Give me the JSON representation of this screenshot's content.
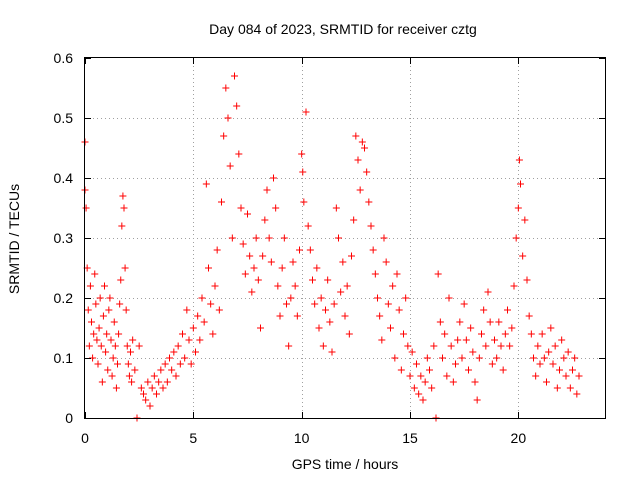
{
  "chart_data": {
    "type": "scatter",
    "title": "Day 084 of 2023, SRMTID for receiver cztg",
    "xlabel": "GPS time / hours",
    "ylabel": "SRMTID / TECUs",
    "xlim": [
      0,
      24
    ],
    "ylim": [
      0,
      0.6
    ],
    "xticks": [
      0,
      5,
      10,
      15,
      20
    ],
    "yticks": [
      0,
      0.1,
      0.2,
      0.3,
      0.4,
      0.5,
      0.6
    ],
    "xtick_labels": [
      "0",
      "5",
      "10",
      "15",
      "20"
    ],
    "ytick_labels": [
      "0",
      "0.1",
      "0.2",
      "0.3",
      "0.4",
      "0.5",
      "0.6"
    ],
    "grid": true,
    "marker": "+",
    "color": "#ff0000",
    "series": [
      {
        "name": "SRMTID",
        "points": [
          [
            0.0,
            0.46
          ],
          [
            0.0,
            0.38
          ],
          [
            0.05,
            0.35
          ],
          [
            0.1,
            0.25
          ],
          [
            0.15,
            0.18
          ],
          [
            0.2,
            0.12
          ],
          [
            0.25,
            0.22
          ],
          [
            0.3,
            0.16
          ],
          [
            0.35,
            0.1
          ],
          [
            0.4,
            0.14
          ],
          [
            0.45,
            0.24
          ],
          [
            0.5,
            0.19
          ],
          [
            0.55,
            0.13
          ],
          [
            0.6,
            0.09
          ],
          [
            0.65,
            0.15
          ],
          [
            0.7,
            0.2
          ],
          [
            0.75,
            0.12
          ],
          [
            0.8,
            0.06
          ],
          [
            0.85,
            0.17
          ],
          [
            0.9,
            0.22
          ],
          [
            0.95,
            0.11
          ],
          [
            1.0,
            0.14
          ],
          [
            1.05,
            0.08
          ],
          [
            1.1,
            0.18
          ],
          [
            1.15,
            0.2
          ],
          [
            1.2,
            0.13
          ],
          [
            1.25,
            0.07
          ],
          [
            1.3,
            0.1
          ],
          [
            1.35,
            0.16
          ],
          [
            1.4,
            0.12
          ],
          [
            1.45,
            0.05
          ],
          [
            1.5,
            0.09
          ],
          [
            1.55,
            0.14
          ],
          [
            1.6,
            0.19
          ],
          [
            1.65,
            0.23
          ],
          [
            1.7,
            0.32
          ],
          [
            1.75,
            0.37
          ],
          [
            1.8,
            0.35
          ],
          [
            1.85,
            0.25
          ],
          [
            1.9,
            0.18
          ],
          [
            1.95,
            0.12
          ],
          [
            2.0,
            0.09
          ],
          [
            2.05,
            0.07
          ],
          [
            2.1,
            0.11
          ],
          [
            2.15,
            0.06
          ],
          [
            2.2,
            0.13
          ],
          [
            2.3,
            0.08
          ],
          [
            2.4,
            0.0
          ],
          [
            2.5,
            0.12
          ],
          [
            2.6,
            0.05
          ],
          [
            2.7,
            0.04
          ],
          [
            2.8,
            0.03
          ],
          [
            2.9,
            0.06
          ],
          [
            3.0,
            0.02
          ],
          [
            3.1,
            0.05
          ],
          [
            3.2,
            0.07
          ],
          [
            3.3,
            0.04
          ],
          [
            3.4,
            0.06
          ],
          [
            3.5,
            0.08
          ],
          [
            3.6,
            0.05
          ],
          [
            3.7,
            0.09
          ],
          [
            3.8,
            0.06
          ],
          [
            3.9,
            0.1
          ],
          [
            4.0,
            0.08
          ],
          [
            4.1,
            0.11
          ],
          [
            4.2,
            0.07
          ],
          [
            4.3,
            0.12
          ],
          [
            4.4,
            0.09
          ],
          [
            4.5,
            0.14
          ],
          [
            4.6,
            0.1
          ],
          [
            4.7,
            0.18
          ],
          [
            4.8,
            0.13
          ],
          [
            4.9,
            0.09
          ],
          [
            5.0,
            0.15
          ],
          [
            5.1,
            0.11
          ],
          [
            5.2,
            0.17
          ],
          [
            5.3,
            0.13
          ],
          [
            5.4,
            0.2
          ],
          [
            5.5,
            0.16
          ],
          [
            5.6,
            0.39
          ],
          [
            5.7,
            0.25
          ],
          [
            5.8,
            0.19
          ],
          [
            5.9,
            0.14
          ],
          [
            6.0,
            0.22
          ],
          [
            6.1,
            0.28
          ],
          [
            6.2,
            0.18
          ],
          [
            6.3,
            0.36
          ],
          [
            6.4,
            0.47
          ],
          [
            6.5,
            0.55
          ],
          [
            6.6,
            0.5
          ],
          [
            6.7,
            0.42
          ],
          [
            6.8,
            0.3
          ],
          [
            6.9,
            0.57
          ],
          [
            7.0,
            0.52
          ],
          [
            7.1,
            0.44
          ],
          [
            7.2,
            0.35
          ],
          [
            7.3,
            0.29
          ],
          [
            7.4,
            0.24
          ],
          [
            7.5,
            0.34
          ],
          [
            7.6,
            0.27
          ],
          [
            7.7,
            0.21
          ],
          [
            7.8,
            0.25
          ],
          [
            7.9,
            0.3
          ],
          [
            8.0,
            0.23
          ],
          [
            8.1,
            0.15
          ],
          [
            8.2,
            0.27
          ],
          [
            8.3,
            0.33
          ],
          [
            8.4,
            0.38
          ],
          [
            8.5,
            0.3
          ],
          [
            8.6,
            0.26
          ],
          [
            8.7,
            0.4
          ],
          [
            8.8,
            0.35
          ],
          [
            8.9,
            0.22
          ],
          [
            9.0,
            0.17
          ],
          [
            9.1,
            0.25
          ],
          [
            9.2,
            0.3
          ],
          [
            9.3,
            0.19
          ],
          [
            9.4,
            0.12
          ],
          [
            9.5,
            0.2
          ],
          [
            9.6,
            0.26
          ],
          [
            9.7,
            0.22
          ],
          [
            9.8,
            0.17
          ],
          [
            9.9,
            0.28
          ],
          [
            10.0,
            0.44
          ],
          [
            10.05,
            0.41
          ],
          [
            10.1,
            0.36
          ],
          [
            10.2,
            0.51
          ],
          [
            10.3,
            0.32
          ],
          [
            10.4,
            0.28
          ],
          [
            10.5,
            0.23
          ],
          [
            10.6,
            0.19
          ],
          [
            10.7,
            0.25
          ],
          [
            10.8,
            0.15
          ],
          [
            10.9,
            0.2
          ],
          [
            11.0,
            0.12
          ],
          [
            11.1,
            0.18
          ],
          [
            11.2,
            0.23
          ],
          [
            11.3,
            0.16
          ],
          [
            11.4,
            0.11
          ],
          [
            11.5,
            0.19
          ],
          [
            11.6,
            0.35
          ],
          [
            11.7,
            0.3
          ],
          [
            11.8,
            0.21
          ],
          [
            11.9,
            0.26
          ],
          [
            12.0,
            0.17
          ],
          [
            12.1,
            0.22
          ],
          [
            12.2,
            0.14
          ],
          [
            12.3,
            0.27
          ],
          [
            12.4,
            0.33
          ],
          [
            12.5,
            0.47
          ],
          [
            12.6,
            0.43
          ],
          [
            12.7,
            0.38
          ],
          [
            12.8,
            0.46
          ],
          [
            12.9,
            0.45
          ],
          [
            13.0,
            0.41
          ],
          [
            13.1,
            0.36
          ],
          [
            13.2,
            0.32
          ],
          [
            13.3,
            0.28
          ],
          [
            13.4,
            0.24
          ],
          [
            13.5,
            0.2
          ],
          [
            13.6,
            0.17
          ],
          [
            13.7,
            0.13
          ],
          [
            13.8,
            0.3
          ],
          [
            13.9,
            0.26
          ],
          [
            14.0,
            0.19
          ],
          [
            14.1,
            0.15
          ],
          [
            14.2,
            0.22
          ],
          [
            14.3,
            0.1
          ],
          [
            14.4,
            0.24
          ],
          [
            14.5,
            0.18
          ],
          [
            14.6,
            0.08
          ],
          [
            14.7,
            0.14
          ],
          [
            14.8,
            0.2
          ],
          [
            14.9,
            0.12
          ],
          [
            15.0,
            0.07
          ],
          [
            15.1,
            0.11
          ],
          [
            15.2,
            0.05
          ],
          [
            15.3,
            0.09
          ],
          [
            15.4,
            0.04
          ],
          [
            15.5,
            0.07
          ],
          [
            15.6,
            0.03
          ],
          [
            15.7,
            0.06
          ],
          [
            15.8,
            0.1
          ],
          [
            15.9,
            0.08
          ],
          [
            16.0,
            0.05
          ],
          [
            16.1,
            0.12
          ],
          [
            16.2,
            0.0
          ],
          [
            16.3,
            0.24
          ],
          [
            16.4,
            0.16
          ],
          [
            16.5,
            0.1
          ],
          [
            16.6,
            0.14
          ],
          [
            16.7,
            0.07
          ],
          [
            16.8,
            0.2
          ],
          [
            16.9,
            0.12
          ],
          [
            17.0,
            0.06
          ],
          [
            17.1,
            0.09
          ],
          [
            17.2,
            0.13
          ],
          [
            17.3,
            0.16
          ],
          [
            17.4,
            0.1
          ],
          [
            17.5,
            0.19
          ],
          [
            17.6,
            0.13
          ],
          [
            17.7,
            0.08
          ],
          [
            17.8,
            0.15
          ],
          [
            17.9,
            0.11
          ],
          [
            18.0,
            0.06
          ],
          [
            18.1,
            0.03
          ],
          [
            18.2,
            0.1
          ],
          [
            18.3,
            0.14
          ],
          [
            18.4,
            0.18
          ],
          [
            18.5,
            0.12
          ],
          [
            18.6,
            0.21
          ],
          [
            18.7,
            0.16
          ],
          [
            18.8,
            0.09
          ],
          [
            18.9,
            0.13
          ],
          [
            19.0,
            0.1
          ],
          [
            19.1,
            0.16
          ],
          [
            19.2,
            0.12
          ],
          [
            19.3,
            0.08
          ],
          [
            19.4,
            0.14
          ],
          [
            19.5,
            0.18
          ],
          [
            19.6,
            0.12
          ],
          [
            19.7,
            0.15
          ],
          [
            19.8,
            0.22
          ],
          [
            19.9,
            0.3
          ],
          [
            20.0,
            0.35
          ],
          [
            20.05,
            0.43
          ],
          [
            20.1,
            0.39
          ],
          [
            20.2,
            0.27
          ],
          [
            20.3,
            0.33
          ],
          [
            20.4,
            0.23
          ],
          [
            20.5,
            0.17
          ],
          [
            20.6,
            0.14
          ],
          [
            20.7,
            0.1
          ],
          [
            20.8,
            0.07
          ],
          [
            20.9,
            0.12
          ],
          [
            21.0,
            0.09
          ],
          [
            21.1,
            0.14
          ],
          [
            21.2,
            0.1
          ],
          [
            21.3,
            0.06
          ],
          [
            21.4,
            0.11
          ],
          [
            21.5,
            0.15
          ],
          [
            21.6,
            0.09
          ],
          [
            21.7,
            0.12
          ],
          [
            21.8,
            0.05
          ],
          [
            21.9,
            0.08
          ],
          [
            22.0,
            0.13
          ],
          [
            22.1,
            0.1
          ],
          [
            22.2,
            0.07
          ],
          [
            22.3,
            0.11
          ],
          [
            22.4,
            0.05
          ],
          [
            22.5,
            0.08
          ],
          [
            22.6,
            0.1
          ],
          [
            22.7,
            0.04
          ],
          [
            22.8,
            0.07
          ]
        ]
      }
    ]
  }
}
